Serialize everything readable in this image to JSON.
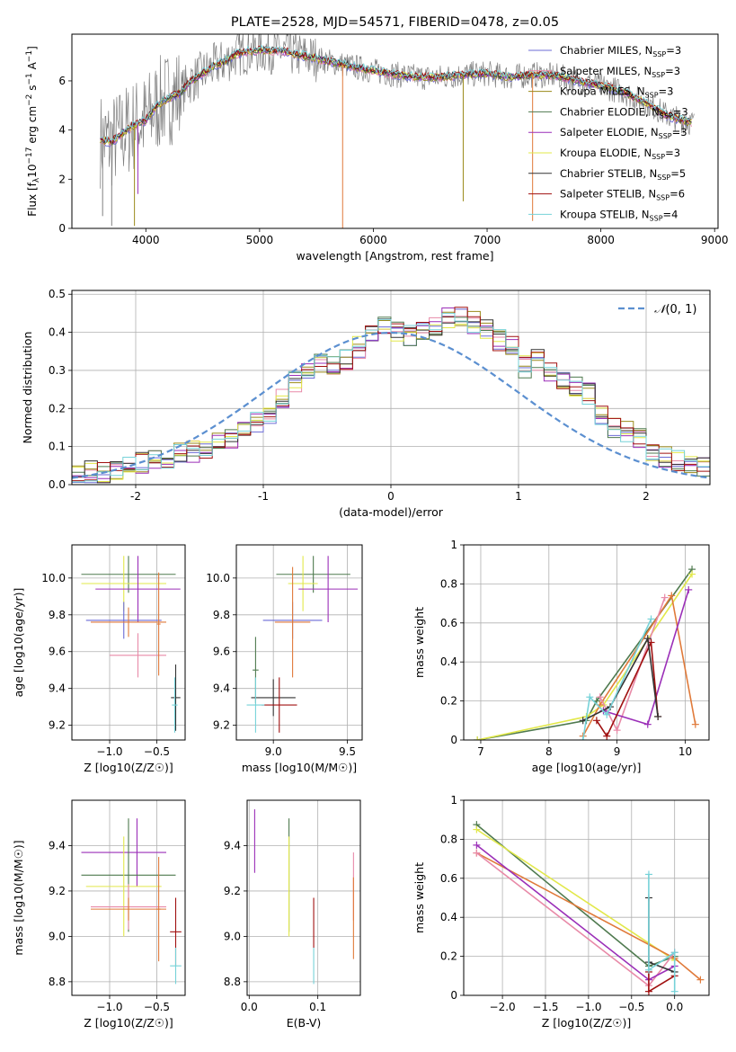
{
  "chart_data": [
    {
      "id": "spectrum",
      "type": "line",
      "title": "PLATE=2528, MJD=54571, FIBERID=0478, z=0.05",
      "xlabel": "wavelength [Angstrom, rest frame]",
      "ylabel": "Flux [f_λ10^-17 erg cm^-2 s^-1 A^-1]",
      "xlim": [
        3350,
        9030
      ],
      "ylim": [
        0,
        7.9
      ],
      "xticks": [
        4000,
        5000,
        6000,
        7000,
        8000,
        9000
      ],
      "yticks": [
        0,
        2,
        4,
        6
      ],
      "grid": false,
      "legend": "top-right",
      "data_series": {
        "name": "data",
        "color": "#808080"
      },
      "continuum": [
        [
          3600,
          3.6
        ],
        [
          3700,
          3.5
        ],
        [
          3800,
          3.9
        ],
        [
          3900,
          4.2
        ],
        [
          4000,
          4.4
        ],
        [
          4100,
          5.0
        ],
        [
          4200,
          5.3
        ],
        [
          4300,
          5.5
        ],
        [
          4400,
          6.0
        ],
        [
          4500,
          6.3
        ],
        [
          4600,
          6.6
        ],
        [
          4700,
          6.8
        ],
        [
          4800,
          7.1
        ],
        [
          4900,
          7.2
        ],
        [
          5000,
          7.25
        ],
        [
          5200,
          7.2
        ],
        [
          5400,
          7.0
        ],
        [
          5600,
          6.8
        ],
        [
          5800,
          6.6
        ],
        [
          6000,
          6.4
        ],
        [
          6200,
          6.25
        ],
        [
          6400,
          6.15
        ],
        [
          6600,
          6.15
        ],
        [
          6800,
          6.25
        ],
        [
          7000,
          6.3
        ],
        [
          7200,
          6.15
        ],
        [
          7400,
          6.25
        ],
        [
          7600,
          6.2
        ],
        [
          7800,
          6.0
        ],
        [
          8000,
          5.8
        ],
        [
          8200,
          5.55
        ],
        [
          8400,
          5.1
        ],
        [
          8600,
          4.55
        ],
        [
          8800,
          4.3
        ]
      ],
      "series": [
        {
          "name": "Chabrier MILES, N_SSP=3",
          "color": "#6b6bd6"
        },
        {
          "name": "Salpeter MILES, N_SSP=3",
          "color": "#e88aa8"
        },
        {
          "name": "Kroupa MILES, N_SSP=3",
          "color": "#9a8a1a"
        },
        {
          "name": "Chabrier ELODIE, N_SSP=3",
          "color": "#4f7a4f"
        },
        {
          "name": "Salpeter ELODIE, N_SSP=3",
          "color": "#9b2fb8"
        },
        {
          "name": "Kroupa ELODIE, N_SSP=3",
          "color": "#e2e84a"
        },
        {
          "name": "Chabrier STELIB, N_SSP=5",
          "color": "#333333"
        },
        {
          "name": "Salpeter STELIB, N_SSP=6",
          "color": "#a01010"
        },
        {
          "name": "Kroupa STELIB, N_SSP=4",
          "color": "#76d2d8"
        }
      ]
    },
    {
      "id": "residuals",
      "type": "line",
      "xlabel": "(data-model)/error",
      "ylabel": "Normed distribution",
      "xlim": [
        -2.5,
        2.5
      ],
      "ylim": [
        0,
        0.51
      ],
      "xticks": [
        -2,
        -1,
        0,
        1,
        2
      ],
      "yticks": [
        0.0,
        0.1,
        0.2,
        0.3,
        0.4,
        0.5
      ],
      "grid": true,
      "legend": "top-right",
      "gaussian_label": "N(0,1)",
      "bin_edges_start": -2.5,
      "bin_width": 0.1,
      "base_hist": [
        0.03,
        0.035,
        0.03,
        0.036,
        0.045,
        0.055,
        0.06,
        0.068,
        0.08,
        0.085,
        0.095,
        0.11,
        0.115,
        0.14,
        0.165,
        0.185,
        0.23,
        0.27,
        0.3,
        0.32,
        0.31,
        0.33,
        0.36,
        0.4,
        0.42,
        0.4,
        0.395,
        0.41,
        0.42,
        0.44,
        0.44,
        0.425,
        0.41,
        0.38,
        0.36,
        0.31,
        0.33,
        0.3,
        0.28,
        0.26,
        0.24,
        0.18,
        0.15,
        0.14,
        0.12,
        0.09,
        0.07,
        0.06,
        0.055,
        0.05
      ],
      "hist_colors": [
        "#6b6bd6",
        "#e88aa8",
        "#9a8a1a",
        "#4f7a4f",
        "#9b2fb8",
        "#e2e84a",
        "#333333",
        "#a01010",
        "#76d2d8"
      ]
    },
    {
      "id": "age_vs_Z",
      "type": "scatter",
      "xlabel": "Z [log10(Z/Z☉)]",
      "ylabel": "age [log10(age/yr)]",
      "xlim": [
        -1.4,
        -0.2
      ],
      "ylim": [
        9.12,
        10.18
      ],
      "xticks": [
        -1.0,
        -0.5
      ],
      "xtick_labels": [
        "−1.0",
        "−0.5"
      ],
      "yticks": [
        9.2,
        9.4,
        9.6,
        9.8,
        10.0
      ],
      "yticks_labels": [
        "9.2",
        "9.4",
        "9.6",
        "9.8",
        "10.0"
      ],
      "grid": true,
      "points": [
        {
          "x": -0.8,
          "xerr": 0.5,
          "y": 10.02,
          "yerr": 0.1,
          "color": "#4f7a4f"
        },
        {
          "x": -0.85,
          "xerr": 0.45,
          "y": 9.97,
          "yerr": 0.15,
          "color": "#e2e84a"
        },
        {
          "x": -0.7,
          "xerr": 0.45,
          "y": 9.94,
          "yerr": 0.18,
          "color": "#9b2fb8"
        },
        {
          "x": -0.85,
          "xerr": 0.4,
          "y": 9.77,
          "yerr": 0.1,
          "color": "#6b6bd6"
        },
        {
          "x": -0.8,
          "xerr": 0.4,
          "y": 9.76,
          "yerr": 0.08,
          "color": "#e07a3a"
        },
        {
          "x": -0.7,
          "xerr": 0.3,
          "y": 9.58,
          "yerr": 0.12,
          "color": "#e88aa8"
        },
        {
          "x": -0.48,
          "xerr": 0.02,
          "y": 9.75,
          "yerr": 0.28,
          "color": "#e07a3a"
        },
        {
          "x": -0.3,
          "xerr": 0.05,
          "y": 9.35,
          "yerr": 0.18,
          "color": "#333333"
        },
        {
          "x": -0.31,
          "xerr": 0.03,
          "y": 9.31,
          "yerr": 0.15,
          "color": "#76d2d8"
        }
      ]
    },
    {
      "id": "age_vs_mass",
      "type": "scatter",
      "xlabel": "mass [log10(M/M☉)]",
      "ylabel": "",
      "xlim": [
        8.75,
        9.6
      ],
      "ylim": [
        9.12,
        10.18
      ],
      "xticks": [
        9.0,
        9.5
      ],
      "xtick_labels": [
        "9.0",
        "9.5"
      ],
      "yticks": [
        9.2,
        9.4,
        9.6,
        9.8,
        10.0
      ],
      "yticks_labels": [
        "9.2",
        "9.4",
        "9.6",
        "9.8",
        "10.0"
      ],
      "grid": true,
      "points": [
        {
          "x": 9.27,
          "xerr": 0.25,
          "y": 10.02,
          "yerr": 0.1,
          "color": "#4f7a4f"
        },
        {
          "x": 9.2,
          "xerr": 0.1,
          "y": 9.97,
          "yerr": 0.15,
          "color": "#e2e84a"
        },
        {
          "x": 9.37,
          "xerr": 0.2,
          "y": 9.94,
          "yerr": 0.18,
          "color": "#9b2fb8"
        },
        {
          "x": 9.13,
          "xerr": 0.2,
          "y": 9.77,
          "yerr": 0.1,
          "color": "#6b6bd6"
        },
        {
          "x": 9.13,
          "xerr": 0.12,
          "y": 9.76,
          "yerr": 0.3,
          "color": "#e07a3a"
        },
        {
          "x": 8.88,
          "xerr": 0.02,
          "y": 9.5,
          "yerr": 0.18,
          "color": "#4f7a4f"
        },
        {
          "x": 9.0,
          "xerr": 0.15,
          "y": 9.35,
          "yerr": 0.1,
          "color": "#333333"
        },
        {
          "x": 9.04,
          "xerr": 0.12,
          "y": 9.31,
          "yerr": 0.15,
          "color": "#a01010"
        },
        {
          "x": 8.88,
          "xerr": 0.06,
          "y": 9.31,
          "yerr": 0.15,
          "color": "#76d2d8"
        }
      ]
    },
    {
      "id": "massweight_vs_age",
      "type": "line",
      "xlabel": "age [log10(age/yr)]",
      "ylabel": "mass weight",
      "xlim": [
        6.75,
        10.35
      ],
      "ylim": [
        0.0,
        1.0
      ],
      "xticks": [
        7,
        8,
        9,
        10
      ],
      "yticks": [
        0.0,
        0.2,
        0.4,
        0.6,
        0.8,
        1.0
      ],
      "grid": true,
      "series": [
        {
          "color": "#4f7a4f",
          "points": [
            [
              6.95,
              0.0
            ],
            [
              8.55,
              0.1
            ],
            [
              8.7,
              0.2
            ],
            [
              10.1,
              0.875
            ]
          ]
        },
        {
          "color": "#e2e84a",
          "points": [
            [
              6.95,
              0.0
            ],
            [
              8.55,
              0.12
            ],
            [
              8.8,
              0.18
            ],
            [
              10.1,
              0.85
            ]
          ]
        },
        {
          "color": "#e07a3a",
          "points": [
            [
              8.5,
              0.02
            ],
            [
              8.75,
              0.18
            ],
            [
              9.8,
              0.74
            ],
            [
              10.15,
              0.08
            ]
          ]
        },
        {
          "color": "#e88aa8",
          "points": [
            [
              8.75,
              0.22
            ],
            [
              9.0,
              0.05
            ],
            [
              9.7,
              0.73
            ]
          ]
        },
        {
          "color": "#9b2fb8",
          "points": [
            [
              8.8,
              0.15
            ],
            [
              9.45,
              0.08
            ],
            [
              10.05,
              0.77
            ]
          ]
        },
        {
          "color": "#a01010",
          "points": [
            [
              8.7,
              0.1
            ],
            [
              8.85,
              0.02
            ],
            [
              9.5,
              0.5
            ],
            [
              9.6,
              0.12
            ]
          ]
        },
        {
          "color": "#333333",
          "points": [
            [
              8.5,
              0.1
            ],
            [
              8.9,
              0.17
            ],
            [
              9.45,
              0.52
            ],
            [
              9.6,
              0.12
            ]
          ]
        },
        {
          "color": "#76d2d8",
          "points": [
            [
              8.5,
              0.0
            ],
            [
              8.6,
              0.22
            ],
            [
              8.85,
              0.13
            ],
            [
              9.5,
              0.62
            ]
          ]
        }
      ]
    },
    {
      "id": "mass_vs_Z",
      "type": "scatter",
      "xlabel": "Z [log10(Z/Z☉)]",
      "ylabel": "mass [log10(M/M☉)]",
      "xlim": [
        -1.4,
        -0.2
      ],
      "ylim": [
        8.74,
        9.6
      ],
      "xticks": [
        -1.0,
        -0.5
      ],
      "xtick_labels": [
        "−1.0",
        "−0.5"
      ],
      "yticks": [
        8.8,
        9.0,
        9.2,
        9.4
      ],
      "yticks_labels": [
        "8.8",
        "9.0",
        "9.2",
        "9.4"
      ],
      "grid": true,
      "points": [
        {
          "x": -0.85,
          "xerr": 0.45,
          "y": 9.37,
          "yerr": 0.0,
          "color": "#9b2fb8"
        },
        {
          "x": -0.71,
          "xerr": 0.0,
          "y": 9.37,
          "yerr": 0.15,
          "color": "#9b2fb8"
        },
        {
          "x": -0.8,
          "xerr": 0.5,
          "y": 9.27,
          "yerr": 0.25,
          "color": "#4f7a4f"
        },
        {
          "x": -0.85,
          "xerr": 0.4,
          "y": 9.22,
          "yerr": 0.22,
          "color": "#e2e84a"
        },
        {
          "x": -0.8,
          "xerr": 0.4,
          "y": 9.13,
          "yerr": 0.1,
          "color": "#e88aa8"
        },
        {
          "x": -0.8,
          "xerr": 0.4,
          "y": 9.12,
          "yerr": 0.05,
          "color": "#e07a3a"
        },
        {
          "x": -0.48,
          "xerr": 0.02,
          "y": 9.12,
          "yerr": 0.23,
          "color": "#e07a3a"
        },
        {
          "x": -0.3,
          "xerr": 0.06,
          "y": 9.02,
          "yerr": 0.15,
          "color": "#a01010"
        },
        {
          "x": -0.3,
          "xerr": 0.06,
          "y": 8.87,
          "yerr": 0.08,
          "color": "#76d2d8"
        }
      ]
    },
    {
      "id": "mass_vs_ebv",
      "type": "scatter",
      "xlabel": "E(B-V)",
      "ylabel": "",
      "xlim": [
        -0.003,
        0.162
      ],
      "ylim": [
        8.74,
        9.6
      ],
      "xticks": [
        0.0,
        0.1
      ],
      "xtick_labels": [
        "0.0",
        "0.1"
      ],
      "yticks": [
        8.8,
        9.0,
        9.2,
        9.4
      ],
      "yticks_labels": [
        "8.8",
        "9.0",
        "9.2",
        "9.4"
      ],
      "grid": true,
      "points": [
        {
          "x": 0.008,
          "xerr": 0.0,
          "y": 9.42,
          "yerr": 0.14,
          "color": "#9b2fb8"
        },
        {
          "x": 0.058,
          "xerr": 0.0,
          "y": 9.27,
          "yerr": 0.25,
          "color": "#4f7a4f"
        },
        {
          "x": 0.058,
          "xerr": 0.0,
          "y": 9.22,
          "yerr": 0.22,
          "color": "#e2e84a"
        },
        {
          "x": 0.094,
          "xerr": 0.0,
          "y": 9.06,
          "yerr": 0.11,
          "color": "#a01010"
        },
        {
          "x": 0.094,
          "xerr": 0.0,
          "y": 8.87,
          "yerr": 0.08,
          "color": "#76d2d8"
        },
        {
          "x": 0.152,
          "xerr": 0.0,
          "y": 9.22,
          "yerr": 0.15,
          "color": "#e88aa8"
        },
        {
          "x": 0.152,
          "xerr": 0.0,
          "y": 9.08,
          "yerr": 0.18,
          "color": "#e07a3a"
        }
      ]
    },
    {
      "id": "massweight_vs_Z",
      "type": "line",
      "xlabel": "Z [log10(Z/Z☉)]",
      "ylabel": "mass weight",
      "xlim": [
        -2.45,
        0.4
      ],
      "ylim": [
        0.0,
        1.0
      ],
      "xticks": [
        -2.0,
        -1.5,
        -1.0,
        -0.5,
        0.0
      ],
      "xtick_labels": [
        "−2.0",
        "−1.5",
        "−1.0",
        "−0.5",
        "0.0"
      ],
      "yticks": [
        0.0,
        0.2,
        0.4,
        0.6,
        0.8,
        1.0
      ],
      "grid": true,
      "series": [
        {
          "color": "#4f7a4f",
          "points": [
            [
              -2.3,
              0.875
            ],
            [
              -0.3,
              0.15
            ],
            [
              0.0,
              0.2
            ]
          ]
        },
        {
          "color": "#e2e84a",
          "points": [
            [
              -2.3,
              0.85
            ],
            [
              0.0,
              0.18
            ]
          ]
        },
        {
          "color": "#e07a3a",
          "points": [
            [
              -2.3,
              0.73
            ],
            [
              0.0,
              0.19
            ],
            [
              0.3,
              0.08
            ]
          ]
        },
        {
          "color": "#e88aa8",
          "points": [
            [
              -2.3,
              0.73
            ],
            [
              -0.3,
              0.05
            ],
            [
              0.0,
              0.22
            ]
          ]
        },
        {
          "color": "#9b2fb8",
          "points": [
            [
              -2.3,
              0.77
            ],
            [
              -0.3,
              0.08
            ],
            [
              0.0,
              0.15
            ]
          ]
        },
        {
          "color": "#a01010",
          "points": [
            [
              -0.3,
              0.12
            ],
            [
              -0.3,
              0.02
            ],
            [
              0.0,
              0.1
            ]
          ]
        },
        {
          "color": "#333333",
          "points": [
            [
              -0.3,
              0.5
            ],
            [
              -0.3,
              0.17
            ],
            [
              0.0,
              0.12
            ]
          ]
        },
        {
          "color": "#76d2d8",
          "points": [
            [
              -0.3,
              0.62
            ],
            [
              -0.3,
              0.13
            ],
            [
              0.0,
              0.22
            ],
            [
              0.0,
              0.02
            ]
          ]
        }
      ]
    }
  ]
}
